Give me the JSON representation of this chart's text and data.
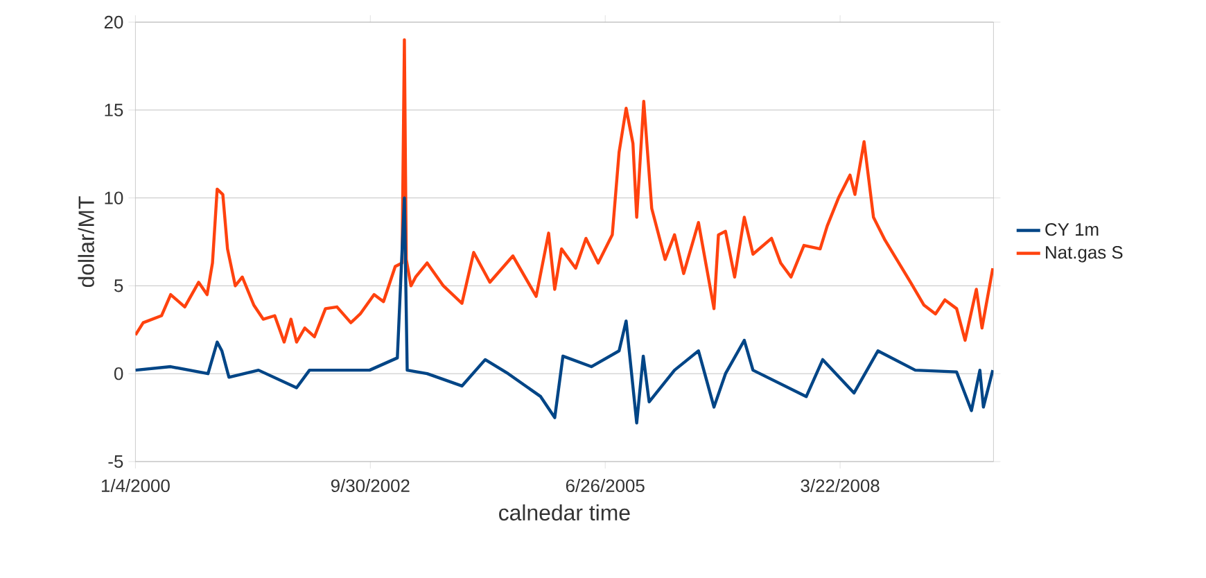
{
  "chart_data": {
    "type": "line",
    "xlabel": "calnedar time",
    "ylabel": "dollar/MT",
    "xlim": [
      "2000-01-04",
      "2010-01-04"
    ],
    "ylim": [
      -5,
      20
    ],
    "yticks": [
      -5,
      0,
      5,
      10,
      15,
      20
    ],
    "xticks": [
      {
        "value": "2000-01-04",
        "label": "1/4/2000"
      },
      {
        "value": "2002-09-30",
        "label": "9/30/2002"
      },
      {
        "value": "2005-06-26",
        "label": "6/26/2005"
      },
      {
        "value": "2008-03-22",
        "label": "3/22/2008"
      }
    ],
    "grid": "y",
    "legend": "right",
    "series": [
      {
        "name": "CY 1m",
        "color": "#004586",
        "x": [
          "2000-01-04",
          "2000-06-02",
          "2000-11-08",
          "2000-12-17",
          "2001-01-06",
          "2001-02-05",
          "2001-06-11",
          "2001-11-20",
          "2002-01-14",
          "2002-09-27",
          "2003-01-23",
          "2003-02-22",
          "2003-03-06",
          "2003-05-30",
          "2003-10-25",
          "2004-02-01",
          "2004-05-09",
          "2004-09-24",
          "2004-11-23",
          "2004-12-28",
          "2005-04-28",
          "2005-08-24",
          "2005-09-23",
          "2005-11-07",
          "2005-12-05",
          "2005-12-30",
          "2006-04-17",
          "2006-07-28",
          "2006-10-02",
          "2006-11-20",
          "2007-02-08",
          "2007-03-17",
          "2007-10-30",
          "2008-01-08",
          "2008-05-20",
          "2008-08-30",
          "2009-02-05",
          "2009-07-31",
          "2009-10-02",
          "2009-11-07",
          "2009-11-22",
          "2010-01-01"
        ],
        "values": [
          0.2,
          0.4,
          0.0,
          1.8,
          1.3,
          -0.2,
          0.2,
          -0.8,
          0.2,
          0.2,
          0.9,
          10.0,
          0.2,
          0.0,
          -0.7,
          0.8,
          0.0,
          -1.3,
          -2.5,
          1.0,
          0.4,
          1.3,
          3.0,
          -2.8,
          1.0,
          -1.6,
          0.2,
          1.3,
          -1.9,
          0.0,
          1.9,
          0.2,
          -1.3,
          0.8,
          -1.1,
          1.3,
          0.2,
          0.1,
          -2.1,
          0.2,
          -1.9,
          0.2
        ]
      },
      {
        "name": "Nat.gas S",
        "color": "#ff420e",
        "x": [
          "2000-01-04",
          "2000-02-06",
          "2000-04-24",
          "2000-06-02",
          "2000-08-01",
          "2000-09-29",
          "2000-11-04",
          "2000-11-27",
          "2000-12-17",
          "2001-01-10",
          "2001-01-30",
          "2001-03-04",
          "2001-04-03",
          "2001-05-22",
          "2001-07-01",
          "2001-08-19",
          "2001-09-28",
          "2001-10-27",
          "2001-11-20",
          "2001-12-25",
          "2002-02-04",
          "2002-03-23",
          "2002-05-11",
          "2002-07-09",
          "2002-08-18",
          "2002-10-16",
          "2002-11-25",
          "2003-01-14",
          "2003-02-12",
          "2003-02-22",
          "2003-03-02",
          "2003-03-22",
          "2003-04-11",
          "2003-05-30",
          "2003-08-07",
          "2003-10-25",
          "2003-12-14",
          "2004-02-21",
          "2004-05-29",
          "2004-09-05",
          "2004-10-28",
          "2004-11-23",
          "2004-12-22",
          "2005-02-20",
          "2005-04-05",
          "2005-05-27",
          "2005-07-26",
          "2005-08-24",
          "2005-09-23",
          "2005-10-22",
          "2005-11-07",
          "2005-12-07",
          "2006-01-10",
          "2006-03-08",
          "2006-04-17",
          "2006-05-26",
          "2006-07-28",
          "2006-10-02",
          "2006-10-21",
          "2006-11-20",
          "2006-12-29",
          "2007-02-08",
          "2007-03-17",
          "2007-06-04",
          "2007-07-13",
          "2007-08-26",
          "2007-10-20",
          "2007-12-28",
          "2008-01-27",
          "2008-03-15",
          "2008-05-03",
          "2008-05-24",
          "2008-07-02",
          "2008-08-11",
          "2008-09-29",
          "2008-11-18",
          "2009-01-16",
          "2009-03-14",
          "2009-05-02",
          "2009-06-11",
          "2009-07-31",
          "2009-09-05",
          "2009-10-23",
          "2009-11-16",
          "2010-01-01"
        ],
        "values": [
          2.2,
          2.9,
          3.3,
          4.5,
          3.8,
          5.2,
          4.5,
          6.3,
          10.5,
          10.2,
          7.1,
          5.0,
          5.5,
          3.9,
          3.1,
          3.3,
          1.8,
          3.1,
          1.8,
          2.6,
          2.1,
          3.7,
          3.8,
          2.9,
          3.4,
          4.5,
          4.1,
          6.1,
          6.3,
          19.0,
          6.5,
          5.0,
          5.5,
          6.3,
          5.0,
          4.0,
          6.9,
          5.2,
          6.7,
          4.4,
          8.0,
          4.8,
          7.1,
          6.0,
          7.7,
          6.3,
          7.9,
          12.6,
          15.1,
          13.1,
          8.9,
          15.5,
          9.4,
          6.5,
          7.9,
          5.7,
          8.6,
          3.7,
          7.9,
          8.1,
          5.5,
          8.9,
          6.8,
          7.7,
          6.3,
          5.5,
          7.3,
          7.1,
          8.4,
          10.0,
          11.3,
          10.2,
          13.2,
          8.9,
          7.6,
          6.5,
          5.2,
          3.9,
          3.4,
          4.2,
          3.7,
          1.9,
          4.8,
          2.6,
          6.0
        ]
      }
    ]
  }
}
